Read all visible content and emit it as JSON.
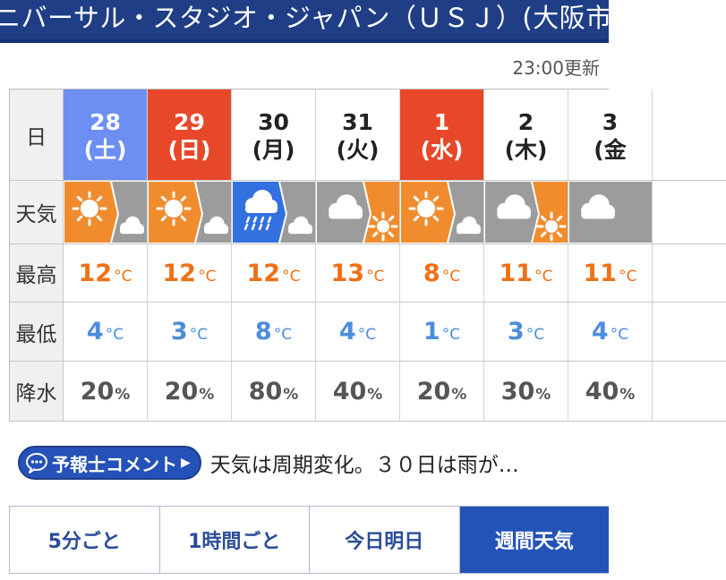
{
  "header": {
    "title": "ニバーサル・スタジオ・ジャパン（ＵＳＪ）(大阪市"
  },
  "updated": "23:00更新",
  "row_labels": {
    "date": "日",
    "weather": "天気",
    "high": "最高",
    "low": "最低",
    "precip": "降水"
  },
  "temp_unit": "°C",
  "precip_unit": "%",
  "days": [
    {
      "day": "28",
      "weekday": "(土)",
      "kind": "sat",
      "weather_icon": "sunny-then-cloudy-icon",
      "high": "12",
      "low": "4",
      "precip": "20"
    },
    {
      "day": "29",
      "weekday": "(日)",
      "kind": "sun",
      "weather_icon": "sunny-then-cloudy-icon",
      "high": "12",
      "low": "3",
      "precip": "20"
    },
    {
      "day": "30",
      "weekday": "(月)",
      "kind": "weekday",
      "weather_icon": "rain-then-cloudy-icon",
      "high": "12",
      "low": "8",
      "precip": "80"
    },
    {
      "day": "31",
      "weekday": "(火)",
      "kind": "weekday",
      "weather_icon": "cloudy-then-sunny-icon",
      "high": "13",
      "low": "4",
      "precip": "40"
    },
    {
      "day": "1",
      "weekday": "(水)",
      "kind": "hol",
      "weather_icon": "sunny-then-cloudy-icon",
      "high": "8",
      "low": "1",
      "precip": "20"
    },
    {
      "day": "2",
      "weekday": "(木)",
      "kind": "weekday",
      "weather_icon": "cloudy-then-sunny-icon",
      "high": "11",
      "low": "3",
      "precip": "30"
    },
    {
      "day": "3",
      "weekday": "(金",
      "kind": "weekday",
      "weather_icon": "cloudy-icon",
      "high": "11",
      "low": "4",
      "precip": "40"
    }
  ],
  "colors": {
    "sunny": "#f08c2e",
    "cloudy": "#9c9c9c",
    "rain": "#3370e0",
    "high": "#ef7016",
    "low": "#4b8ddd",
    "header": "#1f3e86",
    "sat": "#6d8ff3",
    "sun": "#e8482a"
  },
  "comment": {
    "label": "予報士コメント",
    "icon": "speech-bubble-icon",
    "text": "天気は周期変化。３０日は雨が…"
  },
  "tabs": [
    {
      "label": "5分ごと",
      "active": false
    },
    {
      "label": "1時間ごと",
      "active": false
    },
    {
      "label": "今日明日",
      "active": false
    },
    {
      "label": "週間天気",
      "active": true
    }
  ]
}
